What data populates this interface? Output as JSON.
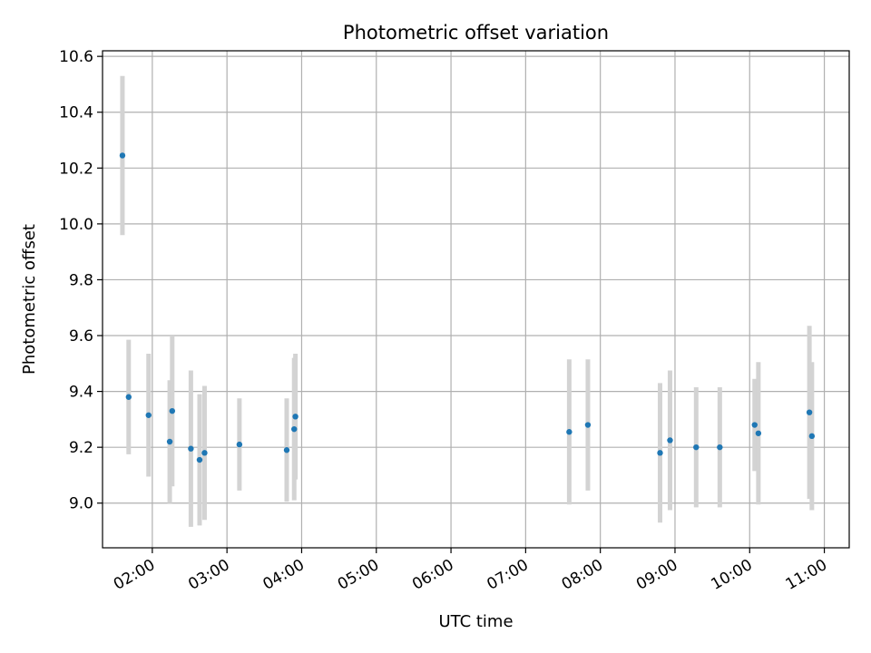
{
  "chart_data": {
    "type": "scatter",
    "title": "Photometric offset variation",
    "xlabel": "UTC time",
    "ylabel": "Photometric offset",
    "grid": true,
    "legend": "none",
    "colors": {
      "point": "#1f77b4",
      "error_bar": "#d3d3d3",
      "grid": "#b0b0b0"
    },
    "xlim": [
      "01:20",
      "11:20"
    ],
    "ylim": [
      8.84,
      10.62
    ],
    "x_ticks": [
      "02:00",
      "03:00",
      "04:00",
      "05:00",
      "06:00",
      "07:00",
      "08:00",
      "09:00",
      "10:00",
      "11:00"
    ],
    "y_ticks": [
      "9.0",
      "9.2",
      "9.4",
      "9.6",
      "9.8",
      "10.0",
      "10.2",
      "10.4",
      "10.6"
    ],
    "points": [
      {
        "time": "01:36",
        "y": 10.245,
        "err": 0.285
      },
      {
        "time": "01:41",
        "y": 9.38,
        "err": 0.205
      },
      {
        "time": "01:57",
        "y": 9.315,
        "err": 0.22
      },
      {
        "time": "02:14",
        "y": 9.22,
        "err": 0.22
      },
      {
        "time": "02:16",
        "y": 9.33,
        "err": 0.27
      },
      {
        "time": "02:31",
        "y": 9.195,
        "err": 0.28
      },
      {
        "time": "02:38",
        "y": 9.155,
        "err": 0.235
      },
      {
        "time": "02:42",
        "y": 9.18,
        "err": 0.24
      },
      {
        "time": "03:10",
        "y": 9.21,
        "err": 0.165
      },
      {
        "time": "03:48",
        "y": 9.19,
        "err": 0.185
      },
      {
        "time": "03:54",
        "y": 9.265,
        "err": 0.255
      },
      {
        "time": "03:55",
        "y": 9.31,
        "err": 0.225
      },
      {
        "time": "07:35",
        "y": 9.255,
        "err": 0.26
      },
      {
        "time": "07:50",
        "y": 9.28,
        "err": 0.235
      },
      {
        "time": "08:48",
        "y": 9.18,
        "err": 0.25
      },
      {
        "time": "08:56",
        "y": 9.225,
        "err": 0.25
      },
      {
        "time": "09:17",
        "y": 9.2,
        "err": 0.215
      },
      {
        "time": "09:36",
        "y": 9.2,
        "err": 0.215
      },
      {
        "time": "10:04",
        "y": 9.28,
        "err": 0.165
      },
      {
        "time": "10:07",
        "y": 9.25,
        "err": 0.255
      },
      {
        "time": "10:48",
        "y": 9.325,
        "err": 0.31
      },
      {
        "time": "10:50",
        "y": 9.24,
        "err": 0.265
      }
    ]
  }
}
